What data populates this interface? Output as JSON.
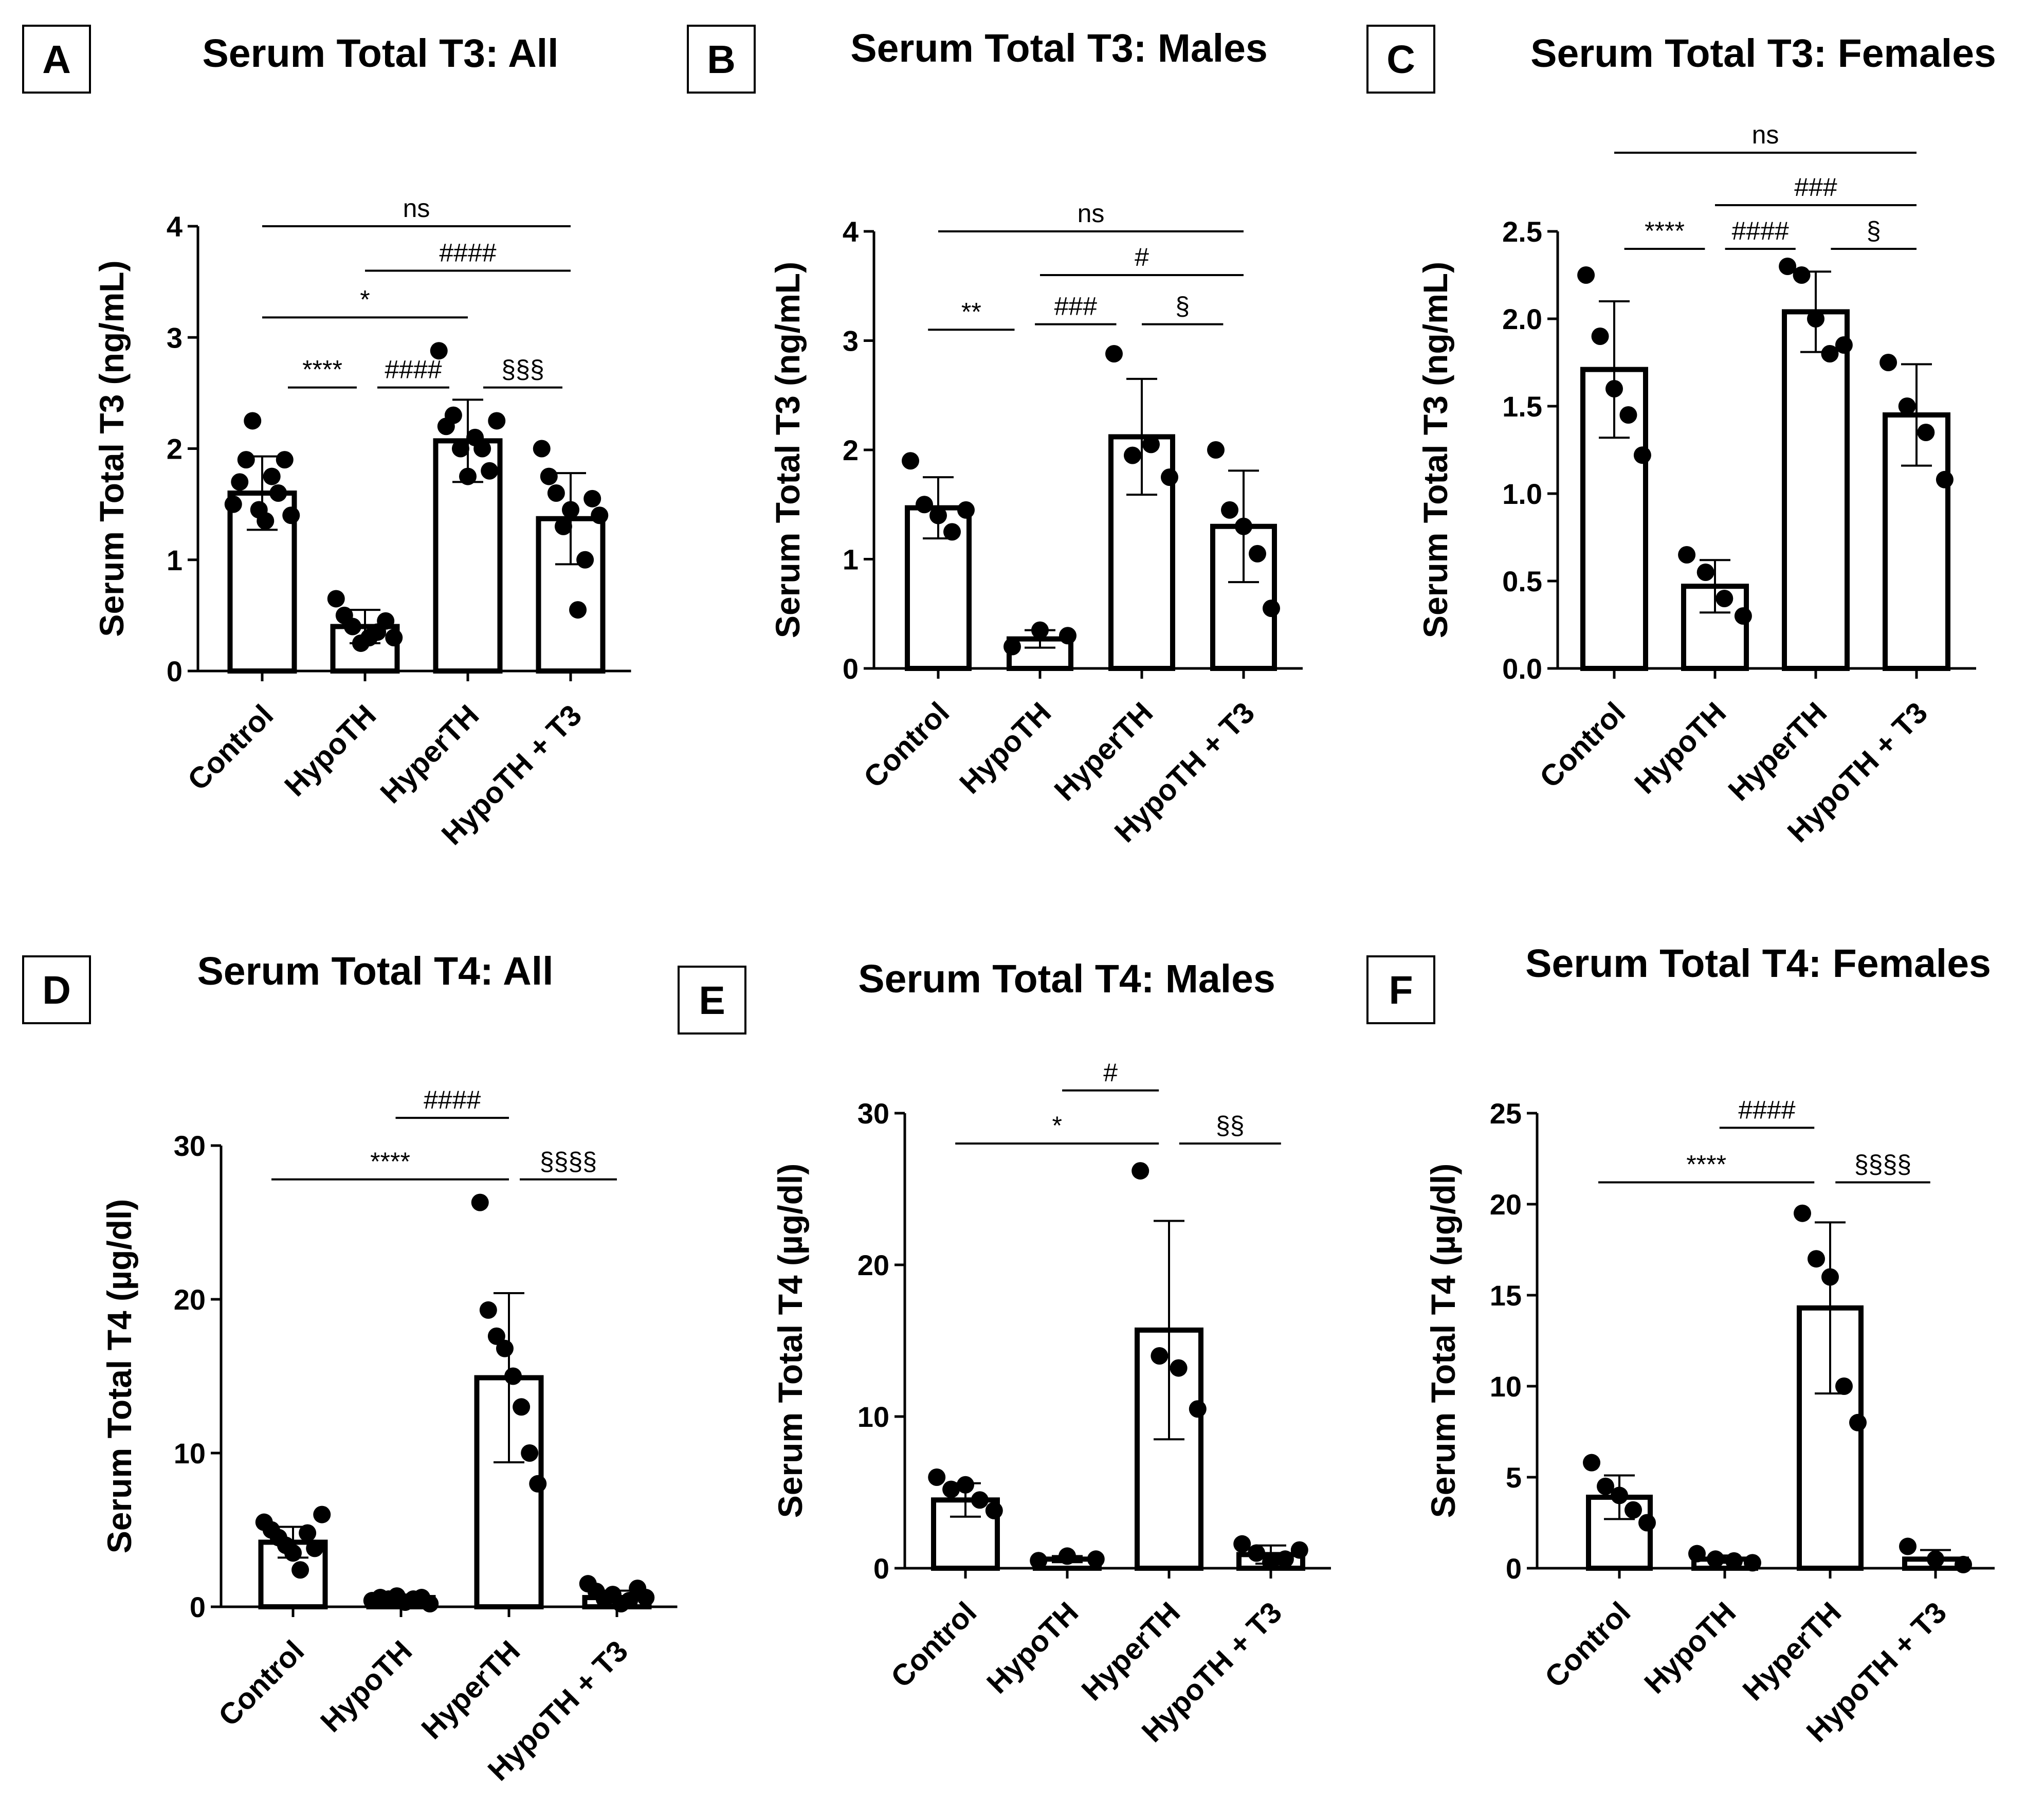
{
  "figure": {
    "colors": {
      "ink": "#000000",
      "bar_fill": "#ffffff"
    },
    "categories": [
      "Control",
      "HypoTH",
      "HyperTH",
      "HypoTH + T3"
    ]
  },
  "chart_data": [
    {
      "panel": "A",
      "type": "bar",
      "title": "Serum Total T3: All",
      "ylabel": "Serum Total T3 (ng/mL)",
      "ylim": [
        0,
        4
      ],
      "yticks": [
        0,
        1,
        2,
        3,
        4
      ],
      "tick_labels": [
        "0",
        "1",
        "2",
        "3",
        "4"
      ],
      "categories": [
        "Control",
        "HypoTH",
        "HyperTH",
        "HypoTH + T3"
      ],
      "values": [
        1.6,
        0.4,
        2.07,
        1.37
      ],
      "sd": [
        0.33,
        0.15,
        0.37,
        0.41
      ],
      "points": [
        [
          1.5,
          1.7,
          1.9,
          2.25,
          1.45,
          1.35,
          1.75,
          1.6,
          1.9,
          1.4
        ],
        [
          0.65,
          0.5,
          0.4,
          0.25,
          0.3,
          0.35,
          0.45,
          0.3
        ],
        [
          2.88,
          2.2,
          2.3,
          2.0,
          1.75,
          2.1,
          2.0,
          1.8,
          2.25
        ],
        [
          2.0,
          1.75,
          1.6,
          1.3,
          1.45,
          0.55,
          1.0,
          1.55,
          1.4
        ]
      ],
      "significance": [
        {
          "from": 0,
          "to": 3,
          "label": "ns",
          "y": 4.0
        },
        {
          "from": 1,
          "to": 3,
          "label": "####",
          "y": 3.6
        },
        {
          "from": 0,
          "to": 2,
          "label": "*",
          "y": 3.18
        },
        {
          "from": 0.25,
          "to": 0.92,
          "label": "****",
          "y": 2.55
        },
        {
          "from": 1.12,
          "to": 1.82,
          "label": "####",
          "y": 2.55
        },
        {
          "from": 2.15,
          "to": 2.92,
          "label": "§§§",
          "y": 2.55
        }
      ]
    },
    {
      "panel": "B",
      "type": "bar",
      "title": "Serum Total T3: Males",
      "ylabel": "Serum Total T3 (ng/mL)",
      "ylim": [
        0,
        4
      ],
      "yticks": [
        0,
        1,
        2,
        3,
        4
      ],
      "tick_labels": [
        "0",
        "1",
        "2",
        "3",
        "4"
      ],
      "categories": [
        "Control",
        "HypoTH",
        "HyperTH",
        "HypoTH + T3"
      ],
      "values": [
        1.47,
        0.27,
        2.12,
        1.3
      ],
      "sd": [
        0.28,
        0.08,
        0.53,
        0.51
      ],
      "points": [
        [
          1.9,
          1.5,
          1.4,
          1.25,
          1.45
        ],
        [
          0.2,
          0.35,
          0.3
        ],
        [
          2.88,
          1.95,
          2.05,
          1.75
        ],
        [
          2.0,
          1.45,
          1.3,
          1.05,
          0.55
        ]
      ],
      "significance": [
        {
          "from": 0,
          "to": 3,
          "label": "ns",
          "y": 4.0
        },
        {
          "from": 1,
          "to": 3,
          "label": "#",
          "y": 3.6
        },
        {
          "from": -0.1,
          "to": 0.75,
          "label": "**",
          "y": 3.1
        },
        {
          "from": 0.95,
          "to": 1.75,
          "label": "###",
          "y": 3.15
        },
        {
          "from": 2.0,
          "to": 2.8,
          "label": "§",
          "y": 3.15
        }
      ]
    },
    {
      "panel": "C",
      "type": "bar",
      "title": "Serum Total T3: Females",
      "ylabel": "Serum Total T3 (ng/mL)",
      "ylim": [
        0,
        2.5
      ],
      "yticks": [
        0,
        0.5,
        1.0,
        1.5,
        2.0,
        2.5
      ],
      "tick_labels": [
        "0.0",
        "0.5",
        "1.0",
        "1.5",
        "2.0",
        "2.5"
      ],
      "categories": [
        "Control",
        "HypoTH",
        "HyperTH",
        "HypoTH + T3"
      ],
      "values": [
        1.71,
        0.47,
        2.04,
        1.45
      ],
      "sd": [
        0.39,
        0.15,
        0.23,
        0.29
      ],
      "points": [
        [
          2.25,
          1.9,
          1.6,
          1.45,
          1.22
        ],
        [
          0.65,
          0.55,
          0.4,
          0.3
        ],
        [
          2.3,
          2.25,
          2.0,
          1.8,
          1.85
        ],
        [
          1.75,
          1.5,
          1.35,
          1.08
        ]
      ],
      "significance": [
        {
          "from": 0,
          "to": 3,
          "label": "ns",
          "y": 2.95
        },
        {
          "from": 1,
          "to": 3,
          "label": "###",
          "y": 2.65
        },
        {
          "from": 0.1,
          "to": 0.9,
          "label": "****",
          "y": 2.4
        },
        {
          "from": 1.1,
          "to": 1.8,
          "label": "####",
          "y": 2.4
        },
        {
          "from": 2.15,
          "to": 3.0,
          "label": "§",
          "y": 2.4
        }
      ]
    },
    {
      "panel": "D",
      "type": "bar",
      "title": "Serum Total T4: All",
      "ylabel": "Serum Total T4 (µg/dl)",
      "ylim": [
        0,
        30
      ],
      "yticks": [
        0,
        10,
        20,
        30
      ],
      "tick_labels": [
        "0",
        "10",
        "20",
        "30"
      ],
      "categories": [
        "Control",
        "HypoTH",
        "HyperTH",
        "HypoTH + T3"
      ],
      "values": [
        4.2,
        0.6,
        14.9,
        0.6
      ],
      "sd": [
        1.0,
        0.15,
        5.5,
        0.45
      ],
      "points": [
        [
          5.5,
          5.0,
          4.5,
          4.0,
          3.5,
          2.4,
          4.8,
          3.8,
          6.0
        ],
        [
          0.4,
          0.6,
          0.5,
          0.7,
          0.3,
          0.5,
          0.6,
          0.2
        ],
        [
          26.3,
          19.3,
          17.6,
          16.8,
          15.0,
          13.0,
          10.0,
          8.0
        ],
        [
          1.5,
          1.0,
          0.5,
          0.8,
          0.2,
          0.4,
          1.2,
          0.6
        ]
      ],
      "significance": [
        {
          "from": 0.95,
          "to": 2.0,
          "label": "####",
          "y": 31.8
        },
        {
          "from": -0.2,
          "to": 2.0,
          "label": "****",
          "y": 27.8
        },
        {
          "from": 2.1,
          "to": 3.0,
          "label": "§§§§",
          "y": 27.8
        }
      ]
    },
    {
      "panel": "E",
      "type": "bar",
      "title": "Serum Total T4: Males",
      "ylabel": "Serum Total T4 (µg/dl)",
      "ylim": [
        0,
        30
      ],
      "yticks": [
        0,
        10,
        20,
        30
      ],
      "tick_labels": [
        "0",
        "10",
        "20",
        "30"
      ],
      "categories": [
        "Control",
        "HypoTH",
        "HyperTH",
        "HypoTH + T3"
      ],
      "values": [
        4.5,
        0.6,
        15.7,
        0.9
      ],
      "sd": [
        1.1,
        0.2,
        7.2,
        0.6
      ],
      "points": [
        [
          6.0,
          5.2,
          5.5,
          4.5,
          3.8
        ],
        [
          0.5,
          0.8,
          0.6
        ],
        [
          26.2,
          14.0,
          13.2,
          10.5
        ],
        [
          1.6,
          1.0,
          0.4,
          0.6,
          1.2
        ]
      ],
      "significance": [
        {
          "from": 0.95,
          "to": 1.9,
          "label": "#",
          "y": 31.5
        },
        {
          "from": -0.1,
          "to": 1.9,
          "label": "*",
          "y": 28.0
        },
        {
          "from": 2.1,
          "to": 3.1,
          "label": "§§",
          "y": 28.0
        }
      ]
    },
    {
      "panel": "F",
      "type": "bar",
      "title": "Serum Total T4: Females",
      "ylabel": "Serum Total T4 (µg/dl)",
      "ylim": [
        0,
        25
      ],
      "yticks": [
        0,
        5,
        10,
        15,
        20,
        25
      ],
      "tick_labels": [
        "0",
        "5",
        "10",
        "15",
        "20",
        "25"
      ],
      "categories": [
        "Control",
        "HypoTH",
        "HyperTH",
        "HypoTH + T3"
      ],
      "values": [
        3.9,
        0.5,
        14.3,
        0.5
      ],
      "sd": [
        1.2,
        0.2,
        4.7,
        0.5
      ],
      "points": [
        [
          5.8,
          4.5,
          4.0,
          3.2,
          2.5
        ],
        [
          0.8,
          0.5,
          0.4,
          0.3
        ],
        [
          19.5,
          17.0,
          16.0,
          10.0,
          8.0
        ],
        [
          1.2,
          0.5,
          0.2
        ]
      ],
      "significance": [
        {
          "from": 0.95,
          "to": 1.85,
          "label": "####",
          "y": 24.2
        },
        {
          "from": -0.2,
          "to": 1.85,
          "label": "****",
          "y": 21.2
        },
        {
          "from": 2.05,
          "to": 2.95,
          "label": "§§§§",
          "y": 21.2
        }
      ]
    }
  ]
}
